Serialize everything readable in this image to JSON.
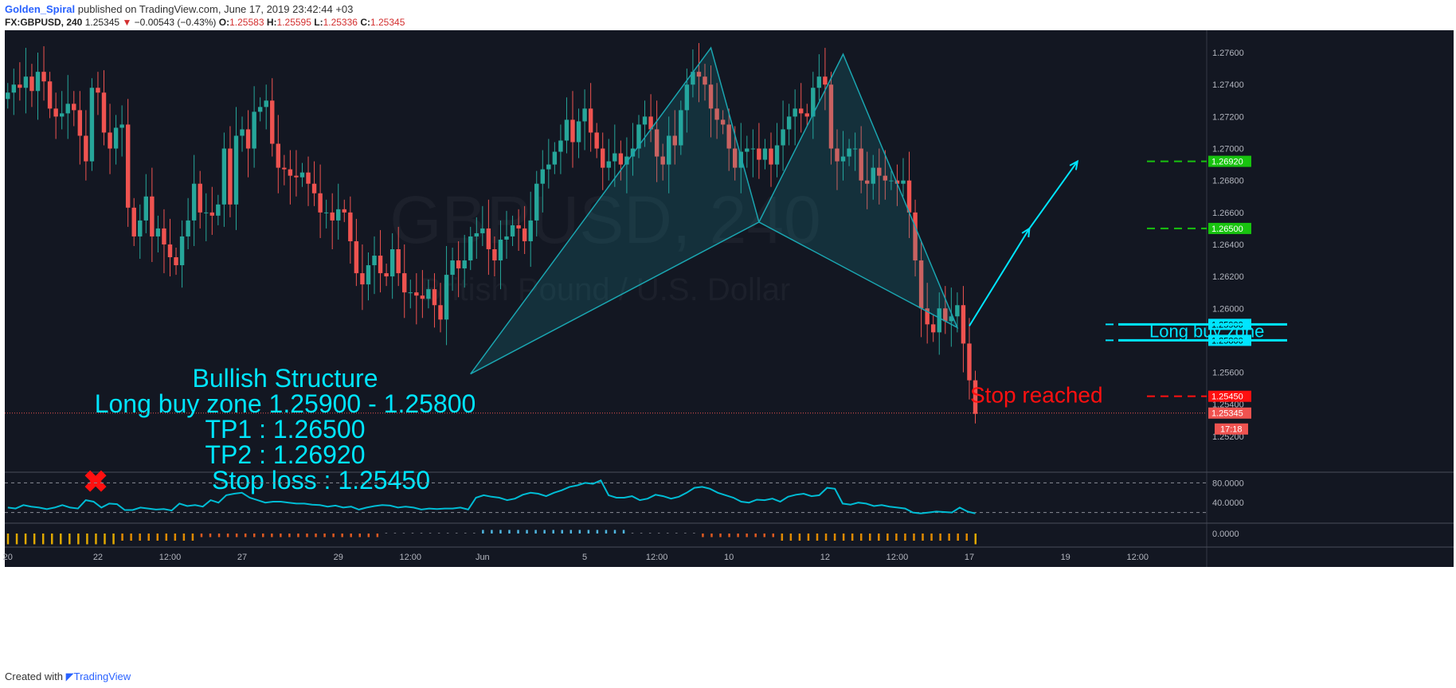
{
  "header": {
    "author": "Golden_Spiral",
    "published_text": "published on TradingView.com, June 17, 2019 23:42:44 +03",
    "symbol": "FX:GBPUSD, 240",
    "last": "1.25345",
    "arrow": "▼",
    "change": "−0.00543 (−0.43%)",
    "o_label": "O:",
    "o_value": "1.25583",
    "h_label": "H:",
    "h_value": "1.25595",
    "l_label": "L:",
    "l_value": "1.25336",
    "c_label": "C:",
    "c_value": "1.25345"
  },
  "footer": {
    "created_with": "Created with",
    "brand": "TradingView"
  },
  "colors": {
    "bg": "#131722",
    "grid": "#1e2230",
    "up": "#26a69a",
    "down": "#ef5350",
    "cyan": "#00e5ff",
    "pattern": "#1aa5b0",
    "green": "#18c30f",
    "red": "#ff1010",
    "axis_text": "#b2b5be"
  },
  "chart_data": {
    "type": "candlestick",
    "watermark": {
      "symbol": "GBPUSD, 240",
      "name": "British Pound / U.S. Dollar"
    },
    "x_axis_labels": [
      "20",
      "22",
      "12:00",
      "27",
      "29",
      "12:00",
      "Jun",
      "5",
      "12:00",
      "10",
      "12",
      "12:00",
      "17",
      "19",
      "12:00"
    ],
    "x_axis_label_bars": [
      0,
      15,
      27,
      39,
      55,
      67,
      79,
      96,
      108,
      120,
      136,
      148,
      160,
      176,
      188
    ],
    "y_axis_ticks": [
      "1.27600",
      "1.27400",
      "1.27200",
      "1.27000",
      "1.26800",
      "1.26600",
      "1.26400",
      "1.26200",
      "1.26000",
      "1.25600",
      "1.25400",
      "1.25200"
    ],
    "y_axis_tick_values": [
      1.276,
      1.274,
      1.272,
      1.27,
      1.268,
      1.266,
      1.264,
      1.262,
      1.26,
      1.256,
      1.254,
      1.252
    ],
    "price_range": [
      1.2498,
      1.2774
    ],
    "bars_total": 200,
    "ohlc_close": [
      1.2735,
      1.274,
      1.2738,
      1.2745,
      1.2736,
      1.2748,
      1.2742,
      1.2725,
      1.272,
      1.2722,
      1.2728,
      1.2724,
      1.2708,
      1.2692,
      1.2738,
      1.2735,
      1.271,
      1.27,
      1.2713,
      1.2715,
      1.2663,
      1.2645,
      1.2655,
      1.267,
      1.2645,
      1.265,
      1.264,
      1.2632,
      1.2627,
      1.2645,
      1.2655,
      1.2678,
      1.266,
      1.266,
      1.2658,
      1.2665,
      1.27,
      1.2665,
      1.2708,
      1.2712,
      1.27,
      1.2723,
      1.2726,
      1.273,
      1.2703,
      1.2688,
      1.2687,
      1.2683,
      1.2682,
      1.2685,
      1.2678,
      1.2672,
      1.266,
      1.266,
      1.2655,
      1.2662,
      1.266,
      1.2642,
      1.2622,
      1.2615,
      1.2627,
      1.2633,
      1.2622,
      1.262,
      1.2637,
      1.2622,
      1.261,
      1.261,
      1.2608,
      1.2606,
      1.2612,
      1.2602,
      1.2593,
      1.2621,
      1.263,
      1.2625,
      1.263,
      1.2645,
      1.2647,
      1.265,
      1.2637,
      1.263,
      1.2643,
      1.2645,
      1.2652,
      1.265,
      1.2642,
      1.2655,
      1.2678,
      1.2687,
      1.269,
      1.2698,
      1.2705,
      1.2718,
      1.2704,
      1.2717,
      1.2725,
      1.271,
      1.27,
      1.2688,
      1.2692,
      1.2697,
      1.269,
      1.2695,
      1.27,
      1.2715,
      1.272,
      1.2712,
      1.2695,
      1.269,
      1.2708,
      1.2702,
      1.2724,
      1.274,
      1.2748,
      1.2745,
      1.274,
      1.2725,
      1.2718,
      1.2715,
      1.27,
      1.2688,
      1.2698,
      1.27,
      1.27,
      1.2693,
      1.27,
      1.269,
      1.2702,
      1.2712,
      1.272,
      1.2725,
      1.2722,
      1.272,
      1.2738,
      1.2745,
      1.274,
      1.27,
      1.2692,
      1.2695,
      1.27,
      1.27,
      1.268,
      1.2678,
      1.2688,
      1.2683,
      1.268,
      1.268,
      1.2678,
      1.268,
      1.266,
      1.263,
      1.26,
      1.259,
      1.2585,
      1.26,
      1.2592,
      1.2595,
      1.2602,
      1.2578,
      1.2555,
      1.2534
    ],
    "annotations": {
      "structure_text": [
        "Bullish Structure",
        "Long buy zone 1.25900 - 1.25800",
        "TP1 : 1.26500",
        "TP2 : 1.26920",
        "Stop loss : 1.25450"
      ],
      "zone_label": "Long buy zone",
      "stop_label": "Stop reached",
      "stop_marker": "✖",
      "levels": [
        {
          "value": 1.2692,
          "label": "1.26920",
          "color": "#18c30f",
          "style": "dashed"
        },
        {
          "value": 1.265,
          "label": "1.26500",
          "color": "#18c30f",
          "style": "dashed"
        },
        {
          "value": 1.259,
          "label": "1.25900",
          "color": "#00e5ff",
          "style": "dashed"
        },
        {
          "value": 1.258,
          "label": "1.25800",
          "color": "#00e5ff",
          "style": "dashed"
        },
        {
          "value": 1.2545,
          "label": "1.25450",
          "color": "#ff1010",
          "style": "dashed"
        }
      ],
      "last_price_label": "1.25345",
      "timer_label": "17:18",
      "pattern_points": [
        {
          "bar": 77,
          "price": 1.2559
        },
        {
          "bar": 117,
          "price": 1.2763
        },
        {
          "bar": 125,
          "price": 1.2654
        },
        {
          "bar": 139,
          "price": 1.2759
        },
        {
          "bar": 158,
          "price": 1.2588
        }
      ],
      "projection": [
        {
          "bar": 160,
          "price": 1.2589
        },
        {
          "bar": 170,
          "price": 1.265
        },
        {
          "bar": 178,
          "price": 1.2692
        }
      ]
    },
    "oscillator": {
      "ticks": [
        "80.0000",
        "40.0000"
      ],
      "tick_values": [
        80,
        40
      ],
      "levels": [
        80,
        20
      ],
      "range": [
        0,
        100
      ],
      "values": [
        30,
        28,
        35,
        32,
        30,
        27,
        30,
        35,
        30,
        28,
        45,
        42,
        30,
        38,
        37,
        25,
        25,
        30,
        28,
        26,
        27,
        24,
        38,
        33,
        35,
        32,
        45,
        40,
        55,
        58,
        60,
        50,
        45,
        40,
        42,
        42,
        40,
        38,
        38,
        36,
        35,
        32,
        34,
        30,
        32,
        26,
        30,
        33,
        35,
        34,
        30,
        32,
        30,
        26,
        28,
        27,
        28,
        28,
        30,
        26,
        50,
        55,
        52,
        50,
        45,
        48,
        56,
        60,
        58,
        53,
        60,
        65,
        72,
        75,
        80,
        78,
        85,
        55,
        50,
        50,
        53,
        45,
        48,
        56,
        53,
        48,
        52,
        60,
        70,
        72,
        68,
        60,
        55,
        50,
        42,
        40,
        46,
        45,
        48,
        42,
        52,
        56,
        58,
        53,
        55,
        70,
        68,
        38,
        36,
        40,
        38,
        33,
        35,
        32,
        30,
        28,
        20,
        18,
        20,
        22,
        21,
        20,
        30,
        22,
        18
      ],
      "color": "#00bcd4"
    },
    "histogram": {
      "tick": "0.0000",
      "values": [
        -3,
        -3,
        -3,
        -3,
        -3,
        -3,
        -3,
        -3,
        -3,
        -3,
        -3,
        -3,
        -3,
        -2,
        -2,
        -2,
        -2,
        -2,
        -2,
        -2,
        -2,
        -2,
        -1,
        -1,
        -1,
        -1,
        -1,
        -1,
        -1,
        -1,
        -1,
        -1,
        -1,
        -1,
        -1,
        -1,
        -1,
        -1,
        -1,
        -1,
        -1,
        -1,
        -1,
        0,
        0,
        0,
        0,
        0,
        0,
        0,
        0,
        0,
        0,
        0,
        1,
        1,
        1,
        1,
        1,
        1,
        1,
        1,
        1,
        1,
        1,
        1,
        1,
        1,
        1,
        1,
        1,
        0,
        0,
        0,
        0,
        0,
        0,
        0,
        0,
        -1,
        -1,
        -1,
        -1,
        -1,
        -1,
        -1,
        -1,
        -1,
        -2,
        -2,
        -2,
        -2,
        -2,
        -2,
        -2,
        -2,
        -2,
        -2,
        -2,
        -2,
        -2,
        -2,
        -2,
        -2,
        -2,
        -2,
        -2,
        -2,
        -2,
        -2,
        -3
      ]
    }
  }
}
